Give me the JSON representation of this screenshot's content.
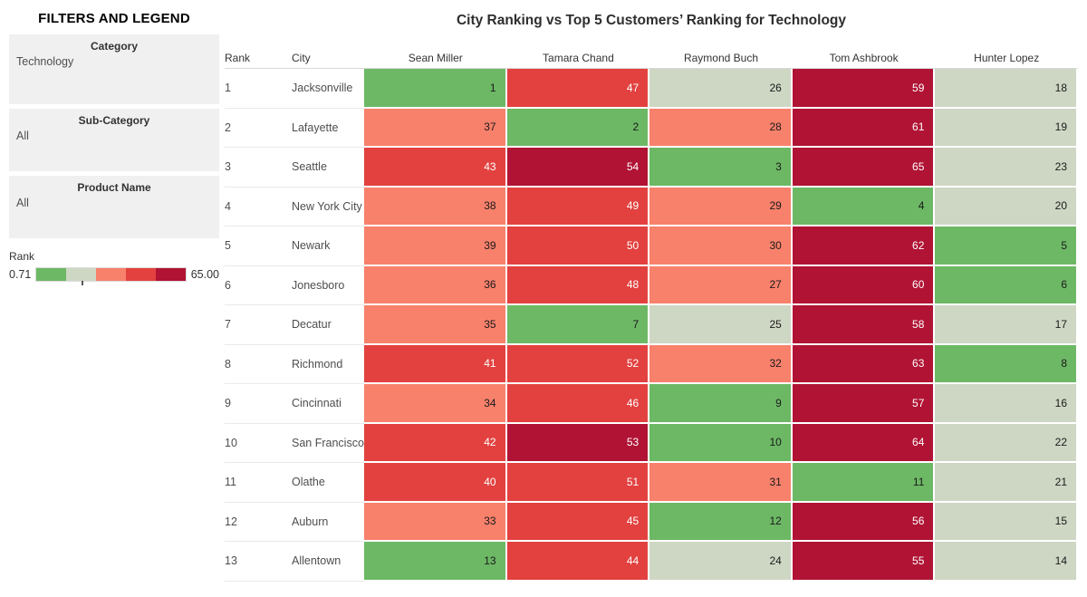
{
  "sidebar": {
    "title": "FILTERS AND LEGEND",
    "filters": [
      {
        "label": "Category",
        "value": "Technology"
      },
      {
        "label": "Sub-Category",
        "value": "All"
      },
      {
        "label": "Product Name",
        "value": "All"
      }
    ],
    "legend": {
      "label": "Rank",
      "min_label": "0.71",
      "max_label": "65.00"
    }
  },
  "main": {
    "title": "City Ranking vs Top 5 Customers’ Ranking for Technology"
  },
  "chart_data": {
    "type": "heatmap",
    "title": "City Ranking vs Top 5 Customers’ Ranking for Technology",
    "columns": [
      "Rank",
      "City",
      "Sean Miller",
      "Tamara Chand",
      "Raymond Buch",
      "Tom Ashbrook",
      "Hunter Lopez"
    ],
    "rows": [
      {
        "rank": 1,
        "city": "Jacksonville",
        "values": [
          1,
          47,
          26,
          59,
          18
        ]
      },
      {
        "rank": 2,
        "city": "Lafayette",
        "values": [
          37,
          2,
          28,
          61,
          19
        ]
      },
      {
        "rank": 3,
        "city": "Seattle",
        "values": [
          43,
          54,
          3,
          65,
          23
        ]
      },
      {
        "rank": 4,
        "city": "New York City",
        "values": [
          38,
          49,
          29,
          4,
          20
        ]
      },
      {
        "rank": 5,
        "city": "Newark",
        "values": [
          39,
          50,
          30,
          62,
          5
        ]
      },
      {
        "rank": 6,
        "city": "Jonesboro",
        "values": [
          36,
          48,
          27,
          60,
          6
        ]
      },
      {
        "rank": 7,
        "city": "Decatur",
        "values": [
          35,
          7,
          25,
          58,
          17
        ]
      },
      {
        "rank": 8,
        "city": "Richmond",
        "values": [
          41,
          52,
          32,
          63,
          8
        ]
      },
      {
        "rank": 9,
        "city": "Cincinnati",
        "values": [
          34,
          46,
          9,
          57,
          16
        ]
      },
      {
        "rank": 10,
        "city": "San Francisco",
        "values": [
          42,
          53,
          10,
          64,
          22
        ]
      },
      {
        "rank": 11,
        "city": "Olathe",
        "values": [
          40,
          51,
          31,
          11,
          21
        ]
      },
      {
        "rank": 12,
        "city": "Auburn",
        "values": [
          33,
          45,
          12,
          56,
          15
        ]
      },
      {
        "rank": 13,
        "city": "Allentown",
        "values": [
          13,
          44,
          24,
          55,
          14
        ]
      }
    ],
    "color_scale": {
      "field": "Rank",
      "min": 0.71,
      "max": 65.0,
      "bands": [
        {
          "max": 13.57,
          "color": "#6db865",
          "text": "#1a1a1a"
        },
        {
          "max": 26.43,
          "color": "#ced7c4",
          "text": "#1a1a1a"
        },
        {
          "max": 39.29,
          "color": "#f8816c",
          "text": "#1a1a1a"
        },
        {
          "max": 52.14,
          "color": "#e2413f",
          "text": "#ffffff"
        },
        {
          "max": 65.0,
          "color": "#b01334",
          "text": "#ffffff"
        }
      ]
    }
  }
}
